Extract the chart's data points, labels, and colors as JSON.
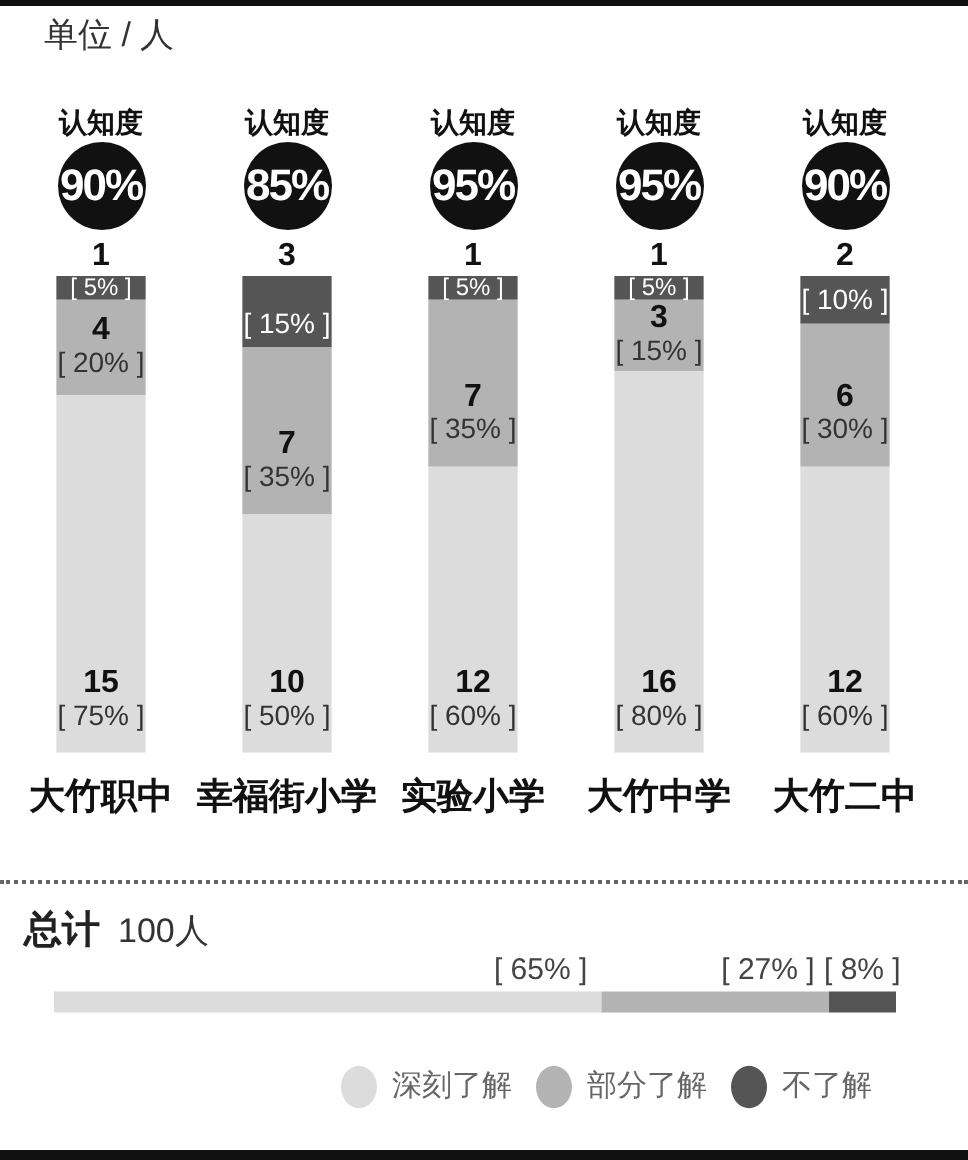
{
  "chart_data": [
    {
      "type": "bar",
      "subtitle": "单位 / 人",
      "categories": [
        "大竹职中",
        "幸福街小学",
        "实验小学",
        "大竹中学",
        "大竹二中"
      ],
      "stacked": true,
      "series": [
        {
          "color": "#dcdcdc",
          "values": [
            15,
            10,
            12,
            16,
            12
          ],
          "value_labels": [
            "15\n[ 75% ]",
            "10\n[ 50% ]",
            "12\n[ 60% ]",
            "16\n[ 80% ]",
            "12\n[ 60% ]"
          ]
        },
        {
          "color": "#b3b3b3",
          "values": [
            4,
            7,
            7,
            3,
            6
          ],
          "value_labels": [
            "4\n[ 20% ]",
            "7\n[ 35% ]",
            "7\n[ 35% ]",
            "3\n[ 15% ]",
            "6\n[ 30% ]"
          ]
        },
        {
          "color": "#555555",
          "values": [
            1,
            3,
            1,
            1,
            2
          ],
          "value_labels": [
            "1\n[ 5% ]",
            "3\n[ 15% ]",
            "1\n[ 5% ]",
            "1\n[ 5% ]",
            "2\n[ 10% ]"
          ]
        }
      ],
      "annotations": [
        "认知度\n90%",
        "认知度\n85%",
        "认知度\n95%",
        "认知度\n95%",
        "认知度\n90%"
      ]
    },
    {
      "type": "bar",
      "orientation": "horizontal",
      "stacked": true,
      "title": "总计",
      "subtitle": "100人",
      "categories": [
        null
      ],
      "series": [
        {
          "name": "深刻了解",
          "color": "#dcdcdc",
          "values": [
            65
          ],
          "value_labels": [
            "[ 65% ]"
          ]
        },
        {
          "name": "部分了解",
          "color": "#b3b3b3",
          "values": [
            27
          ],
          "value_labels": [
            "[ 27% ]"
          ]
        },
        {
          "name": "不了解",
          "color": "#555555",
          "values": [
            8
          ],
          "value_labels": [
            "[ 8% ]"
          ]
        }
      ],
      "legend": "bottom right"
    }
  ]
}
